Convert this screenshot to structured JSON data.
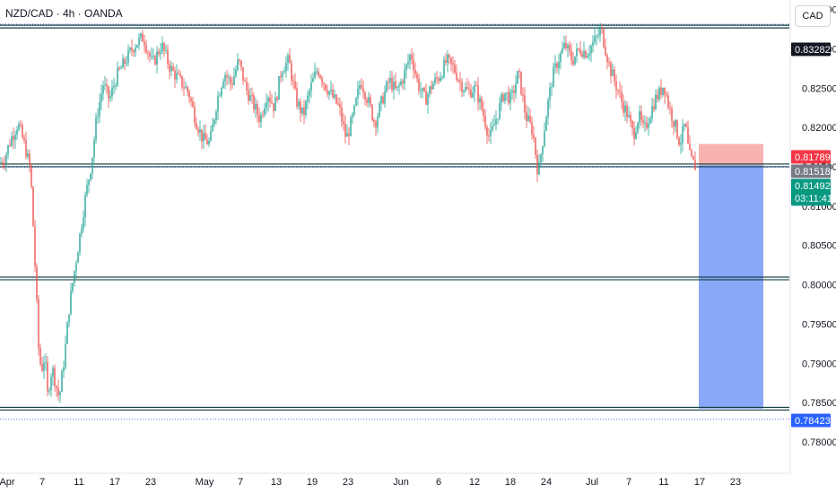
{
  "header": {
    "title": "NZD/CAD · 4h · OANDA",
    "currency": "CAD"
  },
  "colors": {
    "up": "#26a69a",
    "down": "#ef5350",
    "level": "#0f3d3e",
    "stop_zone": "#f7a6a3",
    "target_zone": "#7c9ff7",
    "label_black": "#131722",
    "label_red": "#f23645",
    "label_gray": "#787b86",
    "label_green": "#089981",
    "label_blue": "#2962ff"
  },
  "chart_data": {
    "type": "candlestick",
    "symbol": "NZD/CAD",
    "interval": "4h",
    "source": "OANDA",
    "ylim": [
      0.7775,
      0.8362
    ],
    "y_ticks": [
      "0.83500",
      "0.83000",
      "0.82500",
      "0.82000",
      "0.81500",
      "0.81000",
      "0.80500",
      "0.80000",
      "0.79500",
      "0.79000",
      "0.78500",
      "0.78000"
    ],
    "x_ticks": [
      "Apr",
      "7",
      "11",
      "17",
      "23",
      "May",
      "7",
      "13",
      "19",
      "23",
      "Jun",
      "6",
      "12",
      "18",
      "24",
      "Jul",
      "7",
      "11",
      "17",
      "23"
    ],
    "levels": [
      0.83282,
      0.81518,
      0.8008,
      0.78423
    ],
    "current_price": 0.81492,
    "position": {
      "type": "short",
      "entry": 0.81518,
      "stop": 0.81789,
      "target": 0.78423
    },
    "price_labels": [
      {
        "text": "0.83282",
        "value": 0.83282,
        "style": "black"
      },
      {
        "text": "0.81789",
        "value": 0.81789,
        "style": "red"
      },
      {
        "text": "0.81518",
        "value": 0.81518,
        "style": "gray"
      },
      {
        "text": "0.81492",
        "value": 0.81492,
        "style": "green",
        "sub": "03:11:41"
      },
      {
        "text": "0.78423",
        "value": 0.78423,
        "style": "blue"
      }
    ],
    "price_path": [
      [
        0,
        0.8155
      ],
      [
        5,
        0.816
      ],
      [
        12,
        0.8185
      ],
      [
        20,
        0.8205
      ],
      [
        28,
        0.8175
      ],
      [
        34,
        0.8145
      ],
      [
        37,
        0.8075
      ],
      [
        40,
        0.8
      ],
      [
        43,
        0.792
      ],
      [
        46,
        0.789
      ],
      [
        50,
        0.791
      ],
      [
        53,
        0.786
      ],
      [
        58,
        0.7895
      ],
      [
        62,
        0.7875
      ],
      [
        66,
        0.7855
      ],
      [
        72,
        0.791
      ],
      [
        77,
        0.797
      ],
      [
        82,
        0.801
      ],
      [
        88,
        0.8055
      ],
      [
        95,
        0.811
      ],
      [
        102,
        0.8155
      ],
      [
        108,
        0.8215
      ],
      [
        115,
        0.8255
      ],
      [
        122,
        0.8235
      ],
      [
        130,
        0.8265
      ],
      [
        140,
        0.8285
      ],
      [
        150,
        0.8305
      ],
      [
        160,
        0.8315
      ],
      [
        170,
        0.828
      ],
      [
        180,
        0.8305
      ],
      [
        190,
        0.8275
      ],
      [
        200,
        0.826
      ],
      [
        210,
        0.8245
      ],
      [
        218,
        0.821
      ],
      [
        226,
        0.8185
      ],
      [
        234,
        0.818
      ],
      [
        242,
        0.8235
      ],
      [
        250,
        0.827
      ],
      [
        258,
        0.8255
      ],
      [
        266,
        0.8285
      ],
      [
        274,
        0.825
      ],
      [
        282,
        0.823
      ],
      [
        290,
        0.821
      ],
      [
        298,
        0.8245
      ],
      [
        306,
        0.8225
      ],
      [
        314,
        0.8275
      ],
      [
        322,
        0.8285
      ],
      [
        330,
        0.8235
      ],
      [
        338,
        0.8215
      ],
      [
        346,
        0.825
      ],
      [
        354,
        0.8275
      ],
      [
        362,
        0.8255
      ],
      [
        370,
        0.824
      ],
      [
        378,
        0.8225
      ],
      [
        386,
        0.8185
      ],
      [
        394,
        0.8215
      ],
      [
        402,
        0.826
      ],
      [
        410,
        0.8235
      ],
      [
        418,
        0.8205
      ],
      [
        426,
        0.8235
      ],
      [
        434,
        0.826
      ],
      [
        442,
        0.8245
      ],
      [
        450,
        0.8265
      ],
      [
        458,
        0.8295
      ],
      [
        466,
        0.8255
      ],
      [
        474,
        0.8235
      ],
      [
        482,
        0.8255
      ],
      [
        490,
        0.8265
      ],
      [
        498,
        0.8285
      ],
      [
        506,
        0.8275
      ],
      [
        514,
        0.8255
      ],
      [
        522,
        0.8245
      ],
      [
        530,
        0.825
      ],
      [
        538,
        0.822
      ],
      [
        546,
        0.8185
      ],
      [
        554,
        0.8215
      ],
      [
        562,
        0.8245
      ],
      [
        570,
        0.8235
      ],
      [
        578,
        0.827
      ],
      [
        586,
        0.8215
      ],
      [
        594,
        0.8195
      ],
      [
        600,
        0.814
      ],
      [
        604,
        0.8175
      ],
      [
        610,
        0.8225
      ],
      [
        616,
        0.8265
      ],
      [
        622,
        0.8285
      ],
      [
        630,
        0.8305
      ],
      [
        638,
        0.8285
      ],
      [
        646,
        0.83
      ],
      [
        654,
        0.8295
      ],
      [
        660,
        0.8305
      ],
      [
        666,
        0.8315
      ],
      [
        670,
        0.8325
      ],
      [
        674,
        0.8305
      ],
      [
        680,
        0.8275
      ],
      [
        688,
        0.825
      ],
      [
        694,
        0.823
      ],
      [
        700,
        0.8215
      ],
      [
        706,
        0.819
      ],
      [
        712,
        0.8215
      ],
      [
        718,
        0.8195
      ],
      [
        724,
        0.8215
      ],
      [
        730,
        0.8235
      ],
      [
        736,
        0.8245
      ],
      [
        740,
        0.8255
      ],
      [
        746,
        0.8225
      ],
      [
        752,
        0.8205
      ],
      [
        758,
        0.818
      ],
      [
        764,
        0.8205
      ],
      [
        768,
        0.8165
      ],
      [
        772,
        0.8155
      ],
      [
        776,
        0.8149
      ]
    ]
  }
}
